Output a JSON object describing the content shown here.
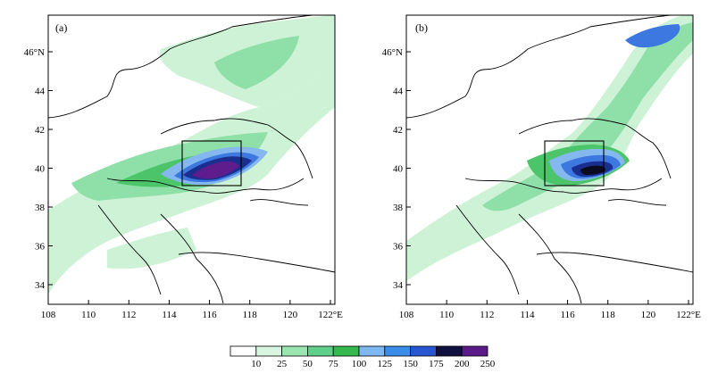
{
  "panels": [
    {
      "label": "(a)",
      "x_ticks": [
        "108",
        "110",
        "112",
        "114",
        "116",
        "118",
        "120",
        "122°E"
      ],
      "y_ticks": [
        "34",
        "36",
        "38",
        "40",
        "42",
        "44",
        "46°N"
      ]
    },
    {
      "label": "(b)",
      "x_ticks": [
        "108",
        "110",
        "112",
        "114",
        "116",
        "118",
        "120",
        "122°E"
      ],
      "y_ticks": [
        "34",
        "36",
        "38",
        "40",
        "42",
        "44",
        "46°N"
      ]
    }
  ],
  "colorbar": {
    "labels": [
      "10",
      "25",
      "50",
      "75",
      "100",
      "125",
      "150",
      "175",
      "200",
      "250"
    ],
    "colors": [
      "#ffffff",
      "#d8f5e0",
      "#9ae5b0",
      "#5fd08a",
      "#35b84e",
      "#7fb8f0",
      "#3a8de8",
      "#2855d0",
      "#101040",
      "#5a1a8a"
    ]
  },
  "colors": {
    "light_green": "#cdf2d6",
    "mid_green": "#8fe0a8",
    "green": "#4cc46a",
    "light_blue": "#86b8f0",
    "blue": "#3c78e0",
    "dark_blue": "#1a2e90",
    "black": "#0a0a20",
    "purple": "#5e1c8c"
  }
}
